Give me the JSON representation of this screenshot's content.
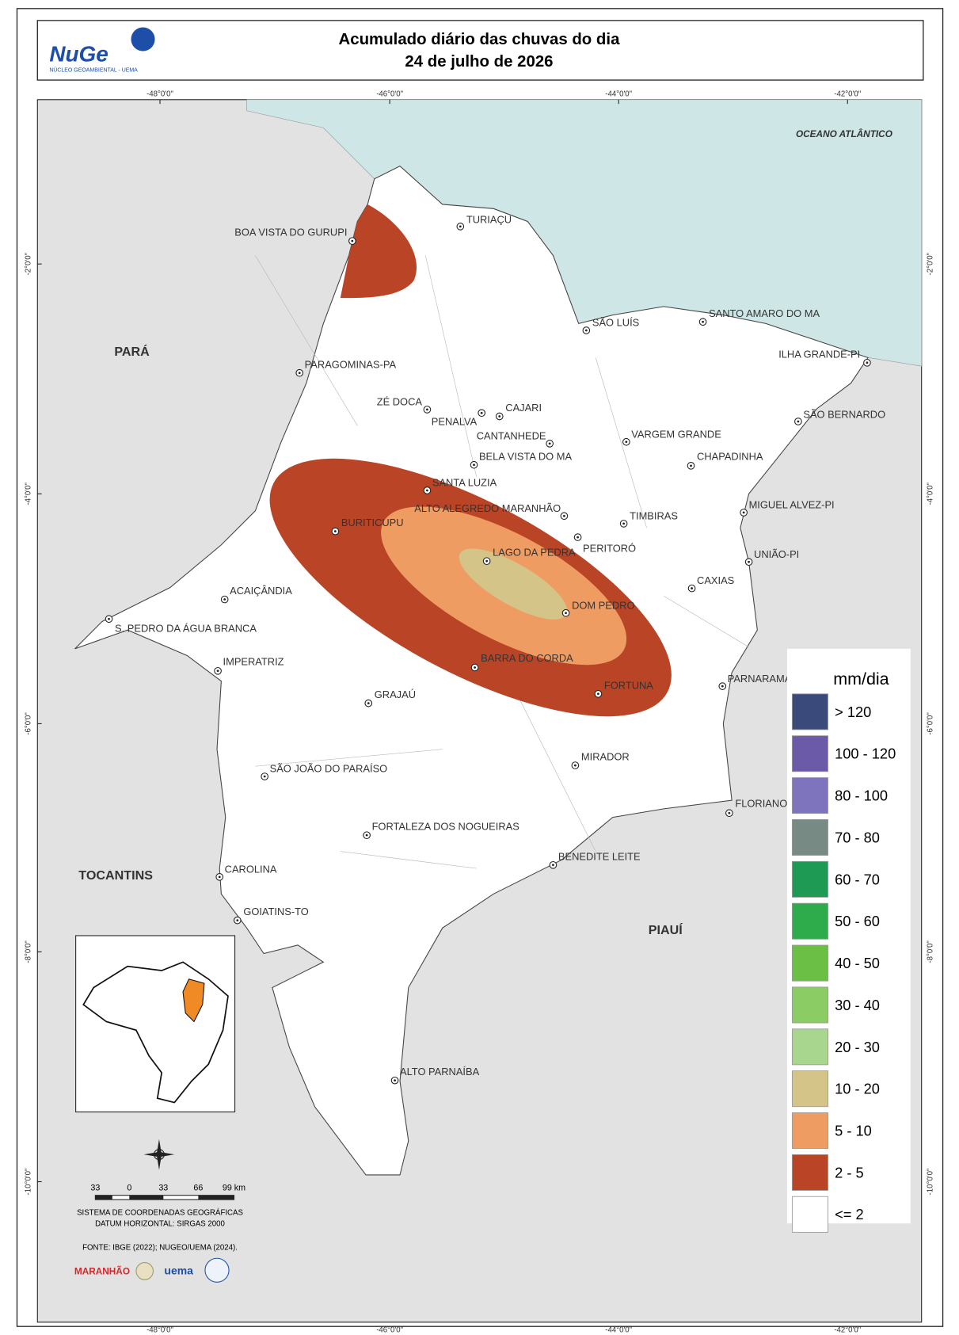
{
  "header": {
    "logo": "NuGe",
    "logo_subtitle": "NÚCLEO GEOAMBIENTAL - UEMA",
    "title_lines": [
      "Acumulado diário das chuvas do dia",
      "24 de julho de 2026"
    ]
  },
  "map": {
    "longitude_labels": [
      "-48°0'0\"",
      "-46°0'0\"",
      "-44°0'0\"",
      "-42°0'0\""
    ],
    "latitude_labels": [
      "-2°0'0\"",
      "-4°0'0\"",
      "-6°0'0\"",
      "-8°0'0\"",
      "-10°0'0\""
    ],
    "regions": [
      "PARÁ",
      "TOCANTINS",
      "PIAUÍ"
    ],
    "ocean": "OCEANO ATLÂNTICO",
    "places": [
      "TURIAÇU",
      "BOA VISTA DO GURUPI",
      "PARAGOMINAS-PA",
      "ZÉ DOCA",
      "PENALVA",
      "CAJARI",
      "SÃO LUÍS",
      "SANTO AMARO DO MA",
      "ILHA GRANDE-PI",
      "SÃO BERNARDO",
      "CANTANHEDE",
      "VARGEM GRANDE",
      "BELA VISTA DO MA",
      "CHAPADINHA",
      "SANTA LUZIA",
      "ALTO ALEGREDO MARANHÃO",
      "TIMBIRAS",
      "MIGUEL ALVEZ-PI",
      "BURITICUPU",
      "PERITORÓ",
      "LAGO DA PEDRA",
      "UNIÃO-PI",
      "CAXIAS",
      "ACAIÇÂNDIA",
      "DOM PEDRO",
      "S. PEDRO DA ÁGUA BRANCA",
      "IMPERATRIZ",
      "BARRA DO CORDA",
      "PARNARAMA",
      "FORTUNA",
      "GRAJAÚ",
      "MIRADOR",
      "SÃO JOÃO DO PARAÍSO",
      "FLORIANO",
      "FORTALEZA DOS NOGUEIRAS",
      "BENEDITE LEITE",
      "CAROLINA",
      "GOIATINS-TO",
      "ALTO PARNAÍBA"
    ]
  },
  "legend": {
    "title": "mm/dia",
    "classes": [
      {
        "label": "> 120",
        "color": "#3a4a7a"
      },
      {
        "label": "100 - 120",
        "color": "#6a5aa8"
      },
      {
        "label": "80 - 100",
        "color": "#7e74bd"
      },
      {
        "label": "70 - 80",
        "color": "#778a84"
      },
      {
        "label": "60 - 70",
        "color": "#1f9a55"
      },
      {
        "label": "50 - 60",
        "color": "#2eac4b"
      },
      {
        "label": "40 - 50",
        "color": "#6bbf45"
      },
      {
        "label": "30 - 40",
        "color": "#8ccc65"
      },
      {
        "label": "20 - 30",
        "color": "#a8d68f"
      },
      {
        "label": "10 - 20",
        "color": "#d4c487"
      },
      {
        "label": "5 - 10",
        "color": "#ef9c63"
      },
      {
        "label": "2 - 5",
        "color": "#b94426"
      },
      {
        "label": "<= 2",
        "color": "#ffffff"
      }
    ]
  },
  "scale_bar": {
    "labels": [
      "33",
      "0",
      "33",
      "66",
      "99 km"
    ]
  },
  "notes": [
    "SISTEMA DE COORDENADAS GEOGRÁFICAS",
    "DATUM HORIZONTAL: SIRGAS 2000"
  ],
  "source": "FONTE: IBGE (2022); NUGEO/UEMA (2024).",
  "partner_logos": [
    "MARANHÃO",
    "uema"
  ]
}
